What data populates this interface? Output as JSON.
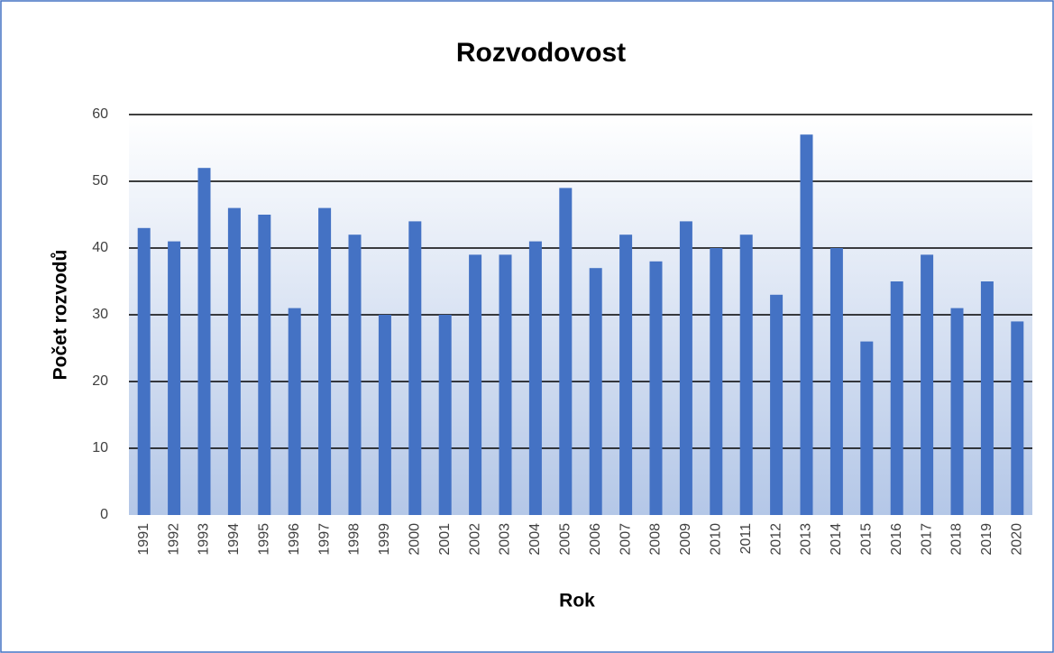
{
  "chart_data": {
    "type": "bar",
    "title": "Rozvodovost",
    "x_label": "Rok",
    "y_label": "Počet rozvodů",
    "categories": [
      "1991",
      "1992",
      "1993",
      "1994",
      "1995",
      "1996",
      "1997",
      "1998",
      "1999",
      "2000",
      "2001",
      "2002",
      "2003",
      "2004",
      "2005",
      "2006",
      "2007",
      "2008",
      "2009",
      "2010",
      "2011",
      "2012",
      "2013",
      "2014",
      "2015",
      "2016",
      "2017",
      "2018",
      "2019",
      "2020"
    ],
    "values": [
      43,
      41,
      52,
      46,
      45,
      31,
      46,
      42,
      30,
      44,
      30,
      39,
      39,
      41,
      49,
      37,
      42,
      38,
      44,
      40,
      42,
      33,
      57,
      40,
      26,
      35,
      39,
      31,
      35,
      29
    ],
    "color": "#4472c4",
    "ylim": [
      0,
      60
    ],
    "yticks": [
      0,
      10,
      20,
      30,
      40,
      50,
      60
    ],
    "grid": true
  }
}
